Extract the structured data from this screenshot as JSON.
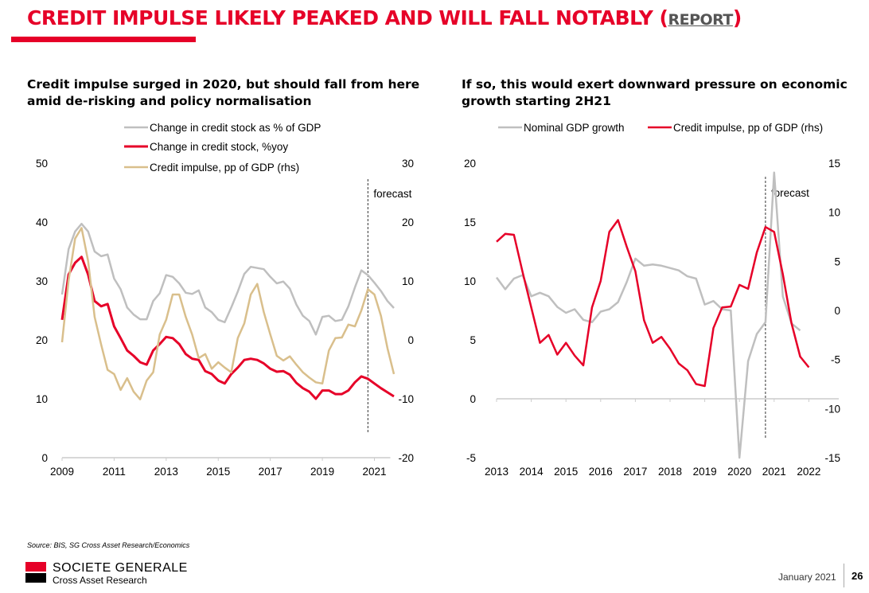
{
  "header": {
    "title": "CREDIT IMPULSE LIKELY PEAKED AND WILL FALL NOTABLY",
    "report_open": "(",
    "report_link": "REPORT",
    "report_close": ")"
  },
  "left_subtitle": [
    "Credit impulse surged in 2020, but should fall from here",
    "amid de-risking and policy normalisation"
  ],
  "right_subtitle": [
    "If so, this would exert downward pressure on economic",
    "growth starting 2H21"
  ],
  "footer": {
    "source": "Source: BIS, SG Cross Asset Research/Economics",
    "brand": "SOCIETE GENERALE",
    "brand_sub": "Cross Asset Research",
    "date": "January 2021",
    "page": "26"
  },
  "chart_data": [
    {
      "type": "line",
      "title": "Credit impulse surged in 2020, but should fall from here amid de-risking and policy normalisation",
      "xlabel": "",
      "ylabel": "",
      "y2label": "",
      "x_start": 2009.0,
      "x_step": 0.25,
      "xlim": [
        2009,
        2022
      ],
      "xticks": [
        "2009",
        "2011",
        "2013",
        "2015",
        "2017",
        "2019",
        "2021"
      ],
      "ylim": [
        0,
        50
      ],
      "yticks": [
        "0",
        "10",
        "20",
        "30",
        "40",
        "50"
      ],
      "y2lim": [
        -20,
        30
      ],
      "y2ticks": [
        "-20",
        "-10",
        "0",
        "10",
        "20",
        "30"
      ],
      "legend_position": "top-center",
      "annotation": {
        "text": "forecast",
        "x": 2020.75
      },
      "grid": false,
      "series": [
        {
          "name": "Change in credit stock as % of GDP",
          "axis": "left",
          "color": "#bfbfbf",
          "values": [
            27.7,
            35.4,
            38.4,
            39.7,
            38.4,
            35.0,
            34.2,
            34.5,
            30.4,
            28.6,
            25.5,
            24.3,
            23.5,
            23.5,
            26.6,
            27.9,
            31.0,
            30.7,
            29.6,
            28.0,
            27.8,
            28.4,
            25.5,
            24.7,
            23.4,
            23.0,
            25.5,
            28.2,
            31.2,
            32.4,
            32.2,
            32.0,
            30.7,
            29.6,
            29.9,
            28.7,
            26.0,
            24.1,
            23.2,
            20.9,
            23.9,
            24.1,
            23.2,
            23.4,
            25.7,
            28.9,
            31.8,
            31.0,
            29.7,
            28.3,
            26.6,
            25.4
          ]
        },
        {
          "name": "Change in credit stock, %yoy",
          "axis": "left",
          "color": "#e60028",
          "values": [
            23.4,
            31.1,
            33.1,
            34.1,
            31.1,
            26.6,
            25.7,
            26.1,
            22.3,
            20.3,
            18.2,
            17.3,
            16.2,
            15.8,
            18.2,
            19.3,
            20.5,
            20.3,
            19.3,
            17.6,
            16.8,
            16.6,
            14.7,
            14.2,
            13.1,
            12.6,
            14.2,
            15.3,
            16.6,
            16.8,
            16.6,
            16.0,
            15.1,
            14.6,
            14.7,
            14.1,
            12.7,
            11.8,
            11.2,
            10.0,
            11.4,
            11.4,
            10.8,
            10.8,
            11.4,
            12.8,
            13.8,
            13.4,
            12.6,
            11.8,
            11.1,
            10.4
          ]
        },
        {
          "name": "Credit impulse, pp of GDP (rhs)",
          "axis": "right",
          "color": "#d9bf8c",
          "values": [
            -0.4,
            10.1,
            17.2,
            19.0,
            13.4,
            3.9,
            -0.8,
            -5.1,
            -5.8,
            -8.5,
            -6.5,
            -8.8,
            -10.1,
            -6.9,
            -5.5,
            0.9,
            3.4,
            7.7,
            7.7,
            3.9,
            0.9,
            -3.1,
            -2.4,
            -4.9,
            -3.8,
            -4.7,
            -5.5,
            0.3,
            2.8,
            7.7,
            9.5,
            4.7,
            0.9,
            -2.7,
            -3.5,
            -2.8,
            -4.2,
            -5.5,
            -6.4,
            -7.2,
            -7.4,
            -1.8,
            0.3,
            0.4,
            2.6,
            2.3,
            5.0,
            8.6,
            7.7,
            4.1,
            -1.4,
            -5.8
          ]
        }
      ]
    },
    {
      "type": "line",
      "title": "If so, this would exert downward pressure on economic growth starting 2H21",
      "xlabel": "",
      "ylabel": "",
      "y2label": "",
      "x_start": 2013.0,
      "x_step": 0.25,
      "xlim": [
        2013,
        2022.5
      ],
      "xticks": [
        "2013",
        "2014",
        "2015",
        "2016",
        "2017",
        "2018",
        "2019",
        "2020",
        "2021",
        "2022"
      ],
      "ylim": [
        -5,
        20
      ],
      "yticks": [
        "-5",
        "0",
        "5",
        "10",
        "15",
        "20"
      ],
      "y2lim": [
        -15,
        15
      ],
      "y2ticks": [
        "-15",
        "-10",
        "-5",
        "0",
        "5",
        "10",
        "15"
      ],
      "legend_position": "top-center",
      "annotation": {
        "text": "forecast",
        "x": 2020.75
      },
      "grid": false,
      "series": [
        {
          "name": "Nominal GDP growth",
          "axis": "left",
          "color": "#bfbfbf",
          "values": [
            10.3,
            9.3,
            10.2,
            10.5,
            8.7,
            9.0,
            8.7,
            7.8,
            7.3,
            7.6,
            6.7,
            6.5,
            7.4,
            7.6,
            8.2,
            9.9,
            11.9,
            11.3,
            11.4,
            11.3,
            11.1,
            10.9,
            10.4,
            10.2,
            8.0,
            8.3,
            7.6,
            7.5,
            -5.0,
            3.2,
            5.5,
            6.5,
            19.2,
            8.7,
            6.4,
            5.8
          ]
        },
        {
          "name": "Credit impulse, pp of GDP (rhs)",
          "axis": "right",
          "color": "#e60028",
          "values": [
            7.0,
            7.8,
            7.7,
            3.9,
            0.3,
            -3.3,
            -2.5,
            -4.5,
            -3.3,
            -4.6,
            -5.6,
            0.3,
            3.0,
            8.0,
            9.2,
            6.5,
            4.0,
            -1.0,
            -3.3,
            -2.7,
            -3.9,
            -5.4,
            -6.1,
            -7.5,
            -7.7,
            -1.8,
            0.3,
            0.4,
            2.6,
            2.2,
            5.9,
            8.5,
            8.0,
            3.7,
            -1.3,
            -4.7,
            -5.8
          ]
        }
      ]
    }
  ]
}
